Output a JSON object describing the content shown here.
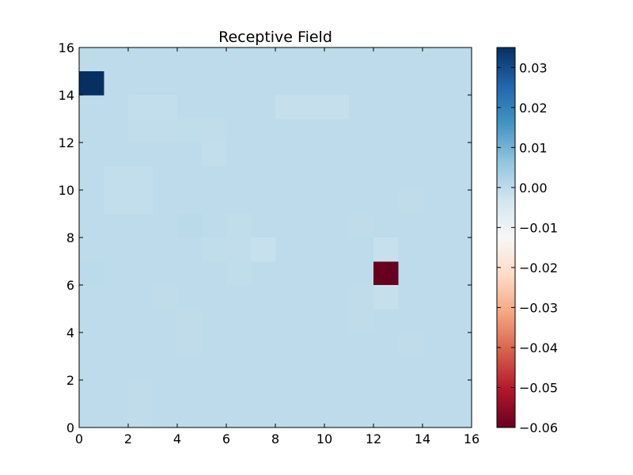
{
  "chart_data": {
    "type": "heatmap",
    "title": "Receptive Field",
    "xlabel": "",
    "ylabel": "",
    "xlim": [
      0,
      16
    ],
    "ylim": [
      0,
      16
    ],
    "x_ticks": [
      0,
      2,
      4,
      6,
      8,
      10,
      12,
      14,
      16
    ],
    "y_ticks": [
      0,
      2,
      4,
      6,
      8,
      10,
      12,
      14,
      16
    ],
    "grid": false,
    "colormap": "RdBu",
    "background_value": 0.0,
    "colorbar": {
      "range": [
        -0.06,
        0.035
      ],
      "ticks": [
        0.03,
        0.02,
        0.01,
        0.0,
        -0.01,
        -0.02,
        -0.03,
        -0.04,
        -0.05,
        -0.06
      ],
      "tick_labels": [
        "0.03",
        "0.02",
        "0.01",
        "0.00",
        "−0.01",
        "−0.02",
        "−0.03",
        "−0.04",
        "−0.05",
        "−0.06"
      ]
    },
    "cells": [
      {
        "x": 0,
        "y": 14,
        "value": 0.035
      },
      {
        "x": 12,
        "y": 6,
        "value": -0.06
      },
      {
        "x": 2,
        "y": 13,
        "value": -0.0008
      },
      {
        "x": 3,
        "y": 13,
        "value": -0.0008
      },
      {
        "x": 2,
        "y": 12,
        "value": -0.0006
      },
      {
        "x": 3,
        "y": 12,
        "value": -0.0006
      },
      {
        "x": 4,
        "y": 12,
        "value": -0.0005
      },
      {
        "x": 5,
        "y": 12,
        "value": -0.0006
      },
      {
        "x": 5,
        "y": 11,
        "value": -0.0008
      },
      {
        "x": 8,
        "y": 13,
        "value": -0.0012
      },
      {
        "x": 9,
        "y": 13,
        "value": -0.0012
      },
      {
        "x": 10,
        "y": 13,
        "value": -0.0012
      },
      {
        "x": 1,
        "y": 10,
        "value": -0.0008
      },
      {
        "x": 2,
        "y": 10,
        "value": -0.0008
      },
      {
        "x": 1,
        "y": 9,
        "value": -0.0008
      },
      {
        "x": 2,
        "y": 9,
        "value": -0.0008
      },
      {
        "x": 6,
        "y": 8,
        "value": -0.0005
      },
      {
        "x": 5,
        "y": 7,
        "value": -0.0005
      },
      {
        "x": 6,
        "y": 7,
        "value": -0.0006
      },
      {
        "x": 7,
        "y": 7,
        "value": -0.0015
      },
      {
        "x": 6,
        "y": 6,
        "value": -0.0005
      },
      {
        "x": 12,
        "y": 7,
        "value": -0.0015
      },
      {
        "x": 12,
        "y": 5,
        "value": -0.0012
      },
      {
        "x": 11,
        "y": 8,
        "value": -0.0004
      },
      {
        "x": 11,
        "y": 5,
        "value": -0.0004
      },
      {
        "x": 11,
        "y": 4,
        "value": -0.0004
      },
      {
        "x": 13,
        "y": 9,
        "value": -0.0004
      },
      {
        "x": 13,
        "y": 3,
        "value": -0.0004
      },
      {
        "x": 3,
        "y": 5,
        "value": -0.0004
      },
      {
        "x": 4,
        "y": 4,
        "value": -0.0004
      },
      {
        "x": 4,
        "y": 3,
        "value": -0.0004
      },
      {
        "x": 2,
        "y": 1,
        "value": -0.0004
      },
      {
        "x": 2,
        "y": 0,
        "value": -0.0004
      },
      {
        "x": 4,
        "y": 8,
        "value": 0.0004
      },
      {
        "x": 0,
        "y": 6,
        "value": 0.0003
      }
    ]
  }
}
